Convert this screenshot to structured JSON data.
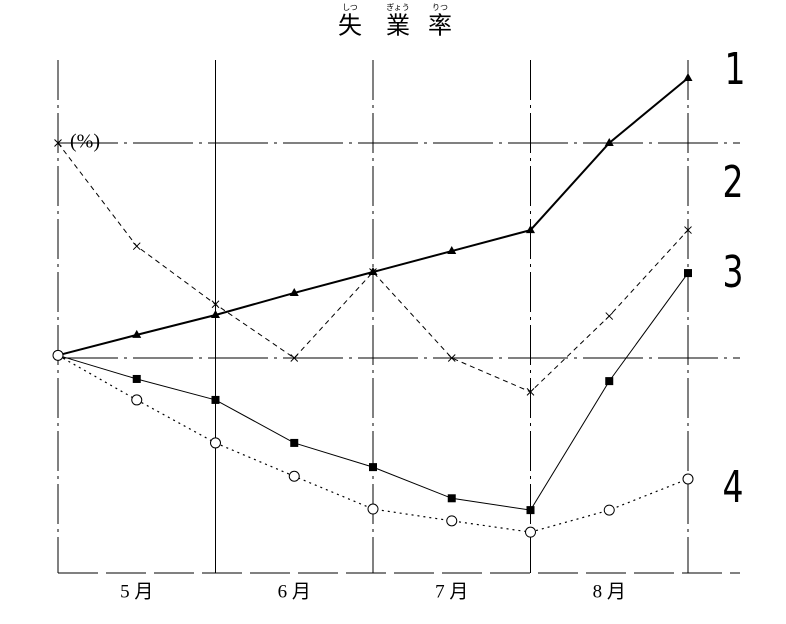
{
  "chart_data": {
    "type": "line",
    "title": "失業率",
    "title_ruby": [
      "しつ",
      "ぎょう",
      "りつ"
    ],
    "ylabel": "(%)",
    "categories": [
      null,
      "5 月",
      null,
      "6 月",
      null,
      "7 月",
      null,
      "8 月",
      null
    ],
    "ylim": [
      0,
      96
    ],
    "grid_lines": [
      40,
      80
    ],
    "series": [
      {
        "name": "1",
        "color": "#000000",
        "marker": "triangle",
        "linestyle": "solid",
        "values": [
          40.5,
          44.3,
          48.0,
          52.1,
          56.0,
          59.9,
          63.8,
          80.0,
          92.1
        ]
      },
      {
        "name": "2",
        "color": "#000000",
        "marker": "cross",
        "linestyle": "dashed",
        "values": [
          80.0,
          60.8,
          50.0,
          40.0,
          56.0,
          40.0,
          33.7,
          47.8,
          63.8
        ]
      },
      {
        "name": "3",
        "color": "#000000",
        "marker": "square",
        "linestyle": "solid-thin",
        "values": [
          40.5,
          36.1,
          32.2,
          24.2,
          19.7,
          13.9,
          11.7,
          35.7,
          55.8
        ]
      },
      {
        "name": "4",
        "color": "#000000",
        "marker": "circle",
        "linestyle": "dotted",
        "values": [
          40.5,
          32.2,
          24.2,
          18.0,
          11.9,
          9.7,
          7.6,
          11.7,
          17.5
        ]
      }
    ]
  }
}
